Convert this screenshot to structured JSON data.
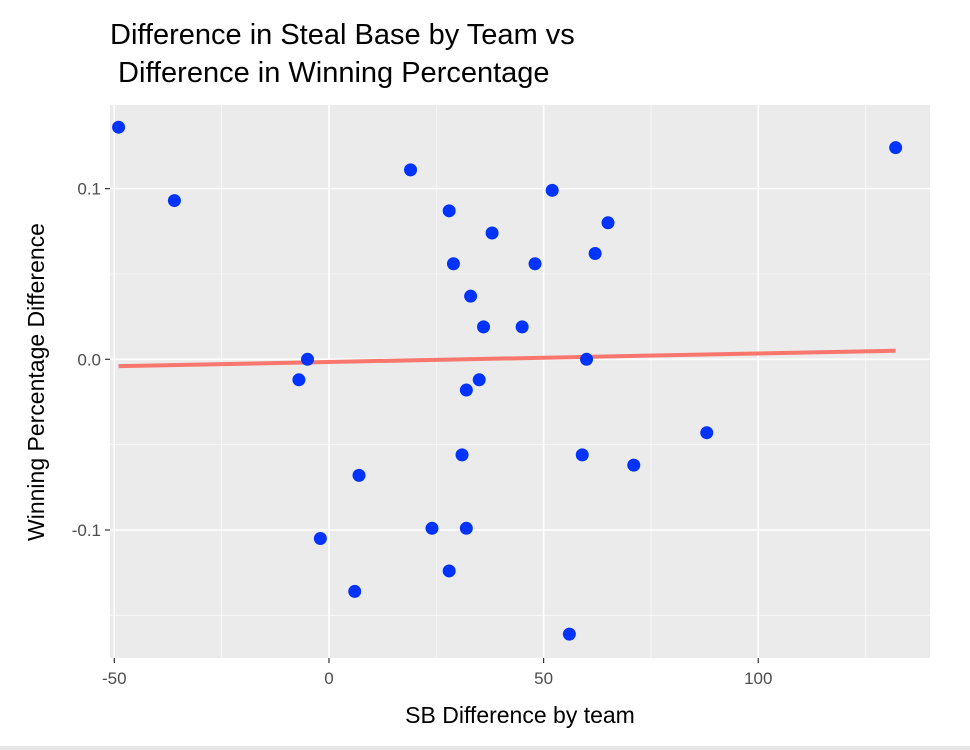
{
  "chart_data": {
    "type": "scatter",
    "title_lines": [
      "Difference in Steal Base by Team vs",
      " Difference in Winning Percentage"
    ],
    "xlabel": "SB Difference by team",
    "ylabel": "Winning Percentage Difference",
    "xlim": [
      -51,
      140
    ],
    "ylim": [
      -0.175,
      0.149
    ],
    "x_ticks": [
      {
        "value": -50,
        "label": "-50"
      },
      {
        "value": 0,
        "label": "0"
      },
      {
        "value": 50,
        "label": "50"
      },
      {
        "value": 100,
        "label": "100"
      }
    ],
    "y_ticks": [
      {
        "value": 0.1,
        "label": "0.1"
      },
      {
        "value": 0.0,
        "label": "0.0"
      },
      {
        "value": -0.1,
        "label": "-0.1"
      }
    ],
    "x_minor": [
      -25,
      25,
      75,
      125
    ],
    "y_minor": [
      0.15,
      0.05,
      -0.05,
      -0.15
    ],
    "grid": true,
    "colors": {
      "panel": "#ebebeb",
      "grid": "#ffffff",
      "points": "#0033ff",
      "trend": "#f8766d",
      "tick_mark": "#333333"
    },
    "points": [
      {
        "x": -49,
        "y": 0.136
      },
      {
        "x": -36,
        "y": 0.093
      },
      {
        "x": -7,
        "y": -0.012
      },
      {
        "x": -5,
        "y": 0.0
      },
      {
        "x": -2,
        "y": -0.105
      },
      {
        "x": 6,
        "y": -0.136
      },
      {
        "x": 7,
        "y": -0.068
      },
      {
        "x": 19,
        "y": 0.111
      },
      {
        "x": 24,
        "y": -0.099
      },
      {
        "x": 28,
        "y": 0.087
      },
      {
        "x": 28,
        "y": -0.124
      },
      {
        "x": 29,
        "y": 0.056
      },
      {
        "x": 31,
        "y": -0.056
      },
      {
        "x": 32,
        "y": -0.018
      },
      {
        "x": 32,
        "y": -0.099
      },
      {
        "x": 33,
        "y": 0.037
      },
      {
        "x": 35,
        "y": -0.012
      },
      {
        "x": 36,
        "y": 0.019
      },
      {
        "x": 38,
        "y": 0.074
      },
      {
        "x": 45,
        "y": 0.019
      },
      {
        "x": 48,
        "y": 0.056
      },
      {
        "x": 52,
        "y": 0.099
      },
      {
        "x": 56,
        "y": -0.161
      },
      {
        "x": 59,
        "y": -0.056
      },
      {
        "x": 60,
        "y": 0.0
      },
      {
        "x": 62,
        "y": 0.062
      },
      {
        "x": 65,
        "y": 0.08
      },
      {
        "x": 71,
        "y": -0.062
      },
      {
        "x": 88,
        "y": -0.043
      },
      {
        "x": 132,
        "y": 0.124
      }
    ],
    "trend_line": {
      "x": [
        -49,
        132
      ],
      "y": [
        -0.004,
        0.005
      ]
    }
  }
}
